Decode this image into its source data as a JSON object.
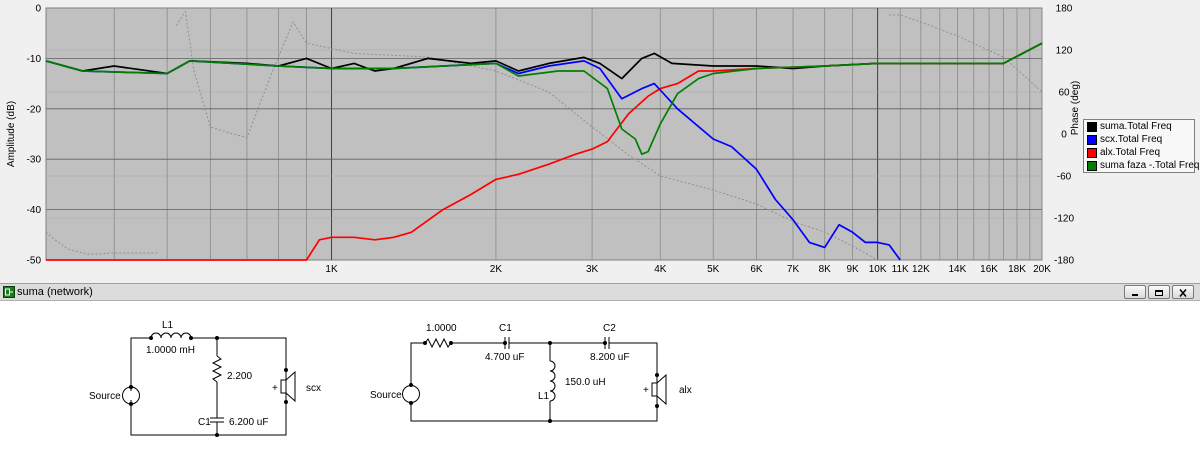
{
  "chart": {
    "y_left_label": "Amplitude (dB)",
    "y_right_label": "Phase (deg)",
    "y_left_ticks": [
      "0",
      "-10",
      "-20",
      "-30",
      "-40",
      "-50"
    ],
    "y_right_ticks": [
      "180",
      "120",
      "60",
      "0",
      "-60",
      "-120",
      "-180"
    ],
    "x_tick_labels": [
      "1K",
      "2K",
      "3K",
      "4K",
      "5K",
      "6K",
      "7K",
      "8K",
      "9K",
      "10K",
      "11K",
      "12K",
      "14K",
      "16K",
      "18K",
      "20K"
    ],
    "legend": [
      {
        "label": "suma.Total Freq",
        "color": "#000000"
      },
      {
        "label": "scx.Total Freq",
        "color": "#0000ff"
      },
      {
        "label": "alx.Total Freq",
        "color": "#ff0000"
      },
      {
        "label": "suma faza -.Total Freq",
        "color": "#008000"
      }
    ]
  },
  "chart_data": {
    "type": "line",
    "x_scale": "log",
    "x_unit": "Hz",
    "xlim": [
      300,
      20000
    ],
    "ylim": [
      -50,
      0
    ],
    "y2lim": [
      -180,
      180
    ],
    "grid": true,
    "legend_position": "right",
    "series": [
      {
        "name": "suma.Total Freq",
        "color": "#000000",
        "axis": "left",
        "points": [
          [
            300,
            -10.5
          ],
          [
            350,
            -12.5
          ],
          [
            400,
            -11.5
          ],
          [
            500,
            -13
          ],
          [
            550,
            -10.5
          ],
          [
            700,
            -11
          ],
          [
            800,
            -11.5
          ],
          [
            900,
            -10
          ],
          [
            1000,
            -12
          ],
          [
            1100,
            -11
          ],
          [
            1200,
            -12.5
          ],
          [
            1300,
            -12
          ],
          [
            1500,
            -10
          ],
          [
            1800,
            -11
          ],
          [
            2000,
            -10.5
          ],
          [
            2200,
            -12.5
          ],
          [
            2500,
            -11
          ],
          [
            2900,
            -9.8
          ],
          [
            3100,
            -11
          ],
          [
            3400,
            -14
          ],
          [
            3700,
            -10
          ],
          [
            3900,
            -9
          ],
          [
            4200,
            -11
          ],
          [
            5000,
            -11.5
          ],
          [
            6000,
            -11.5
          ],
          [
            7000,
            -12
          ],
          [
            8000,
            -11.5
          ],
          [
            10000,
            -11
          ],
          [
            14000,
            -11
          ],
          [
            17000,
            -11
          ],
          [
            20000,
            -7
          ]
        ]
      },
      {
        "name": "scx.Total Freq",
        "color": "#0000ff",
        "axis": "left",
        "points": [
          [
            300,
            -10.5
          ],
          [
            350,
            -12.5
          ],
          [
            500,
            -13
          ],
          [
            550,
            -10.5
          ],
          [
            800,
            -11.5
          ],
          [
            1000,
            -12
          ],
          [
            1300,
            -12
          ],
          [
            2000,
            -11
          ],
          [
            2200,
            -13
          ],
          [
            2500,
            -11.5
          ],
          [
            2900,
            -10.5
          ],
          [
            3100,
            -12
          ],
          [
            3400,
            -18
          ],
          [
            3700,
            -16
          ],
          [
            3900,
            -15
          ],
          [
            4300,
            -20
          ],
          [
            5000,
            -26
          ],
          [
            5400,
            -27.5
          ],
          [
            6000,
            -32
          ],
          [
            6500,
            -38
          ],
          [
            7000,
            -42
          ],
          [
            7500,
            -46.5
          ],
          [
            8000,
            -47.5
          ],
          [
            8500,
            -43
          ],
          [
            9000,
            -44.5
          ],
          [
            9500,
            -46.5
          ],
          [
            10000,
            -46.5
          ],
          [
            10500,
            -47
          ],
          [
            11000,
            -50
          ]
        ]
      },
      {
        "name": "alx.Total Freq",
        "color": "#ff0000",
        "axis": "left",
        "points": [
          [
            300,
            -50
          ],
          [
            900,
            -50
          ],
          [
            950,
            -46
          ],
          [
            1000,
            -45.5
          ],
          [
            1100,
            -45.5
          ],
          [
            1200,
            -46
          ],
          [
            1300,
            -45.5
          ],
          [
            1400,
            -44.5
          ],
          [
            1600,
            -40
          ],
          [
            1800,
            -37
          ],
          [
            2000,
            -34
          ],
          [
            2200,
            -33
          ],
          [
            2500,
            -31
          ],
          [
            2800,
            -29
          ],
          [
            3000,
            -28
          ],
          [
            3200,
            -26.5
          ],
          [
            3500,
            -21
          ],
          [
            3800,
            -17.5
          ],
          [
            4000,
            -16
          ],
          [
            4300,
            -15
          ],
          [
            4700,
            -12.5
          ],
          [
            5000,
            -12.5
          ],
          [
            6000,
            -12
          ],
          [
            8000,
            -11.5
          ],
          [
            10000,
            -11
          ],
          [
            14000,
            -11
          ],
          [
            17000,
            -11
          ],
          [
            20000,
            -7
          ]
        ]
      },
      {
        "name": "suma faza -.Total Freq",
        "color": "#008000",
        "axis": "left",
        "points": [
          [
            300,
            -10.5
          ],
          [
            350,
            -12.5
          ],
          [
            500,
            -13
          ],
          [
            550,
            -10.5
          ],
          [
            800,
            -11.5
          ],
          [
            1000,
            -12
          ],
          [
            1300,
            -12
          ],
          [
            2000,
            -11
          ],
          [
            2200,
            -13.5
          ],
          [
            2600,
            -12.5
          ],
          [
            2900,
            -12.5
          ],
          [
            3200,
            -16
          ],
          [
            3400,
            -24
          ],
          [
            3600,
            -26
          ],
          [
            3700,
            -29
          ],
          [
            3800,
            -28.5
          ],
          [
            4000,
            -23
          ],
          [
            4300,
            -17
          ],
          [
            4700,
            -14
          ],
          [
            5000,
            -13
          ],
          [
            6000,
            -12
          ],
          [
            8000,
            -11.5
          ],
          [
            10000,
            -11
          ],
          [
            14000,
            -11
          ],
          [
            17000,
            -11
          ],
          [
            20000,
            -7
          ]
        ]
      },
      {
        "name": "phase",
        "color": "#909090",
        "axis": "right",
        "style": "dotted",
        "points": [
          [
            300,
            -140
          ],
          [
            310,
            -150
          ],
          [
            330,
            -165
          ],
          [
            360,
            -172
          ],
          [
            400,
            -170
          ],
          [
            480,
            -170
          ],
          [
            520,
            155
          ],
          [
            540,
            175
          ],
          [
            560,
            90
          ],
          [
            600,
            10
          ],
          [
            660,
            0
          ],
          [
            700,
            -5
          ],
          [
            780,
            90
          ],
          [
            850,
            160
          ],
          [
            900,
            130
          ],
          [
            1100,
            115
          ],
          [
            1500,
            110
          ],
          [
            2000,
            90
          ],
          [
            2500,
            60
          ],
          [
            3000,
            10
          ],
          [
            3500,
            -30
          ],
          [
            4000,
            -60
          ],
          [
            5000,
            -80
          ],
          [
            6000,
            -100
          ],
          [
            7000,
            -125
          ],
          [
            8000,
            -140
          ],
          [
            9000,
            -160
          ],
          [
            10000,
            -180
          ],
          [
            10500,
            170
          ],
          [
            11000,
            170
          ],
          [
            12000,
            160
          ],
          [
            14000,
            140
          ],
          [
            17000,
            110
          ],
          [
            20000,
            60
          ]
        ]
      }
    ]
  },
  "window": {
    "title": "suma (network)"
  },
  "schematic": {
    "left": {
      "inductor_label": "L1",
      "inductor_value": "1.0000 mH",
      "resistor_value": "2.200",
      "capacitor_label": "C1",
      "capacitor_value": "6.200 uF",
      "source_label": "Source",
      "speaker_label": "scx"
    },
    "right": {
      "resistor_value": "1.0000",
      "capacitor1_label": "C1",
      "capacitor1_value": "4.700 uF",
      "capacitor2_label": "C2",
      "capacitor2_value": "8.200 uF",
      "inductor_label": "L1",
      "inductor_value": "150.0 uH",
      "source_label": "Source",
      "speaker_label": "alx"
    }
  }
}
